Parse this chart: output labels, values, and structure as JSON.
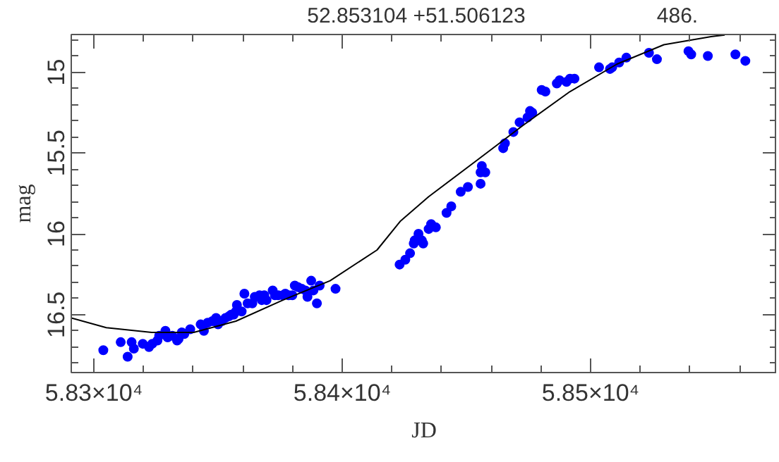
{
  "chart_data": {
    "type": "scatter",
    "xlabel": "JD",
    "ylabel": "mag",
    "annotations": [
      {
        "text": "52.853104 +51.506123"
      },
      {
        "text": "486."
      }
    ],
    "xlim": [
      58290.9,
      58575
    ],
    "ylim": [
      16.858,
      14.767
    ],
    "xticks": [
      {
        "value": 58300,
        "label": "5.83×10⁴"
      },
      {
        "value": 58400,
        "label": "5.84×10⁴"
      },
      {
        "value": 58500,
        "label": "5.85×10⁴"
      }
    ],
    "yticks": [
      15,
      15.5,
      16,
      16.5
    ],
    "marker": "circle",
    "grid": false,
    "series": [
      {
        "color": "#0000ff",
        "x": [
          58303.8,
          58310.8,
          58313.6,
          58315.2,
          58316.1,
          58319.7,
          58322.2,
          58323.5,
          58325.6,
          58326.3,
          58328.8,
          58329.7,
          58331.6,
          58333.5,
          58334.1,
          58335.4,
          58336.4,
          58338.8,
          58343.0,
          58344.3,
          58345.8,
          58347.7,
          58349.2,
          58350.0,
          58351.5,
          58353.0,
          58354.4,
          58355.3,
          58356.3,
          58357.2,
          58357.6,
          58359.5,
          58360.6,
          58361.9,
          58363.8,
          58364.8,
          58366.7,
          58367.6,
          58368.6,
          58369.5,
          58372.0,
          58372.9,
          58374.2,
          58376.1,
          58377.1,
          58378.4,
          58379.9,
          58380.9,
          58382.2,
          58383.7,
          58385.2,
          58386.0,
          58387.5,
          58388.4,
          58389.8,
          58390.9,
          58397.3,
          58423.1,
          58425.4,
          58427.3,
          58428.8,
          58429.2,
          58430.7,
          58432.0,
          58432.6,
          58434.8,
          58435.8,
          58437.7,
          58442.0,
          58443.9,
          58447.7,
          58450.6,
          58455.7,
          58456.2,
          58455.7,
          58457.6,
          58464.8,
          58465.5,
          58468.9,
          58471.4,
          58474.6,
          58475.6,
          58476.5,
          58480.3,
          58481.8,
          58486.4,
          58487.5,
          58490.3,
          58491.7,
          58493.5,
          58503.4,
          58507.8,
          58508.7,
          58511.5,
          58514.4,
          58523.5,
          58526.7,
          58539.4,
          58540.5,
          58547.2,
          58558.3,
          58562.3
        ],
        "values": [
          16.72,
          16.67,
          16.76,
          16.67,
          16.71,
          16.68,
          16.7,
          16.68,
          16.66,
          16.63,
          16.6,
          16.64,
          16.63,
          16.66,
          16.65,
          16.61,
          16.62,
          16.59,
          16.56,
          16.6,
          16.55,
          16.54,
          16.52,
          16.56,
          16.54,
          16.52,
          16.51,
          16.5,
          16.5,
          16.48,
          16.44,
          16.48,
          16.37,
          16.43,
          16.43,
          16.39,
          16.38,
          16.41,
          16.38,
          16.41,
          16.35,
          16.38,
          16.38,
          16.38,
          16.37,
          16.38,
          16.38,
          16.32,
          16.33,
          16.34,
          16.35,
          16.39,
          16.29,
          16.35,
          16.43,
          16.32,
          16.34,
          16.19,
          16.16,
          16.12,
          16.06,
          16.04,
          16.0,
          16.04,
          16.06,
          15.97,
          15.94,
          15.96,
          15.87,
          15.83,
          15.74,
          15.71,
          15.69,
          15.58,
          15.62,
          15.62,
          15.47,
          15.44,
          15.37,
          15.31,
          15.28,
          15.24,
          15.25,
          15.11,
          15.12,
          15.07,
          15.05,
          15.06,
          15.04,
          15.04,
          14.97,
          14.98,
          14.97,
          14.94,
          14.91,
          14.88,
          14.92,
          14.87,
          14.89,
          14.9,
          14.89,
          14.93
        ]
      },
      {
        "type": "line",
        "color": "#000000",
        "marker": "none",
        "x": [
          58290.9,
          58305,
          58323.3,
          58340.2,
          58357.2,
          58376.1,
          58395.1,
          58414.0,
          58423.5,
          58434.8,
          58453.8,
          58472.7,
          58491.7,
          58510.6,
          58529.5,
          58548.5,
          58554
        ],
        "values": [
          16.52,
          16.58,
          16.61,
          16.61,
          16.54,
          16.41,
          16.29,
          16.1,
          15.92,
          15.77,
          15.55,
          15.33,
          15.12,
          14.95,
          14.83,
          14.78,
          14.77
        ]
      }
    ]
  }
}
